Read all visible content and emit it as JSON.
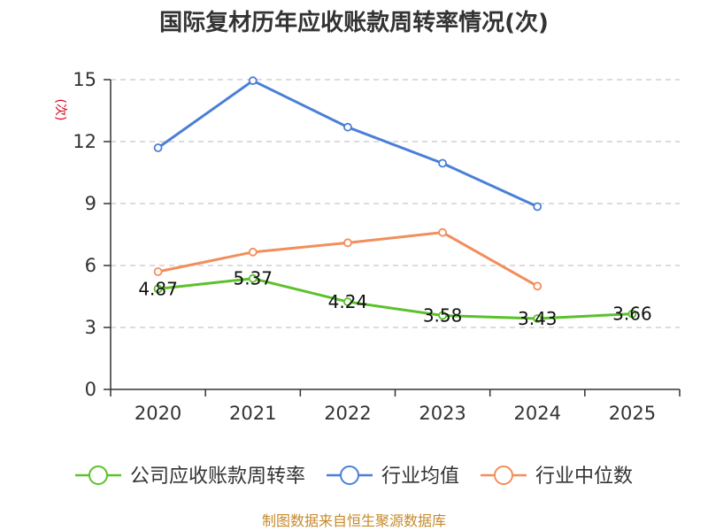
{
  "chart_data": {
    "type": "line",
    "title": "国际复材历年应收账款周转率情况(次)",
    "ylabel": "(次)",
    "xlabel": "",
    "ylim": [
      0,
      15
    ],
    "yticks": [
      0,
      3,
      6,
      9,
      12,
      15
    ],
    "categories": [
      "2020",
      "2021",
      "2022",
      "2023",
      "2024",
      "2025"
    ],
    "grid": true,
    "legend_position": "bottom",
    "series": [
      {
        "name": "公司应收账款周转率",
        "color": "#5cc12a",
        "values": [
          4.87,
          5.37,
          4.24,
          3.58,
          3.43,
          3.66
        ],
        "labels": [
          "4.87",
          "5.37",
          "4.24",
          "3.58",
          "3.43",
          "3.66"
        ]
      },
      {
        "name": "行业均值",
        "color": "#4a7fd8",
        "values": [
          11.7,
          14.95,
          12.7,
          10.95,
          8.85,
          null
        ]
      },
      {
        "name": "行业中位数",
        "color": "#f28e5c",
        "values": [
          5.7,
          6.65,
          7.1,
          7.6,
          5.0,
          null
        ]
      }
    ]
  },
  "source": "制图数据来自恒生聚源数据库"
}
